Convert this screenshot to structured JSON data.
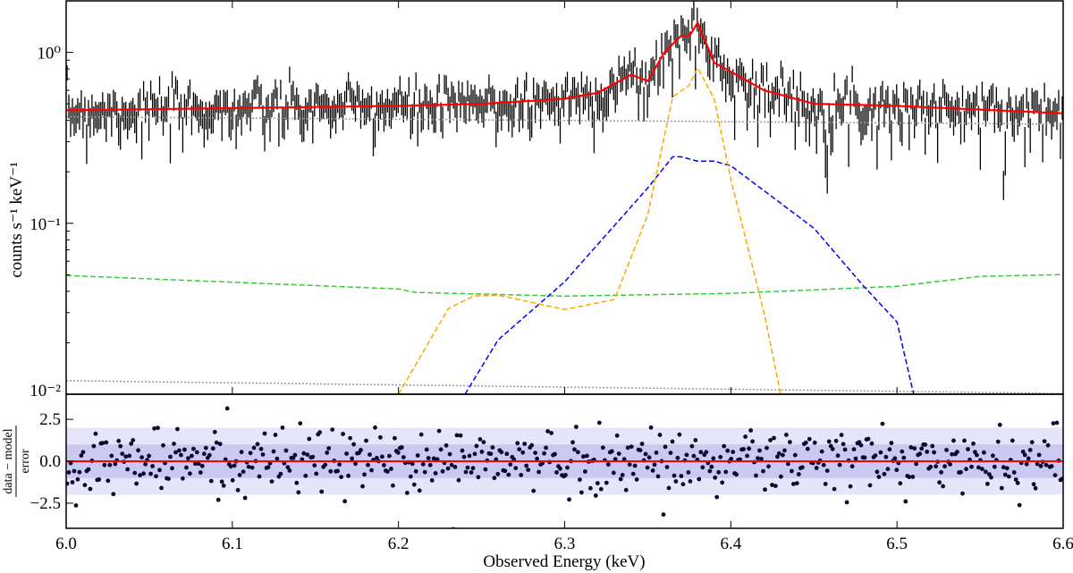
{
  "chart_data": [
    {
      "type": "line",
      "panel": "spectrum",
      "ylabel": "counts s⁻¹ keV⁻¹",
      "yscale": "log",
      "xlim": [
        6.0,
        6.6
      ],
      "ylim": [
        0.01,
        2.0
      ],
      "yticks": [
        {
          "value": 0.01,
          "label": "10⁻²"
        },
        {
          "value": 0.1,
          "label": "10⁻¹"
        },
        {
          "value": 1,
          "label": "10⁰"
        }
      ],
      "grid": false,
      "colors": {
        "data": "#000000",
        "total_model": "#ff0000",
        "line_narrow": "#ffa500",
        "line_broad": "#0000ff",
        "continuum_comp": "#33cc33",
        "background": "#999999"
      },
      "series": [
        {
          "key": "total_model",
          "style": "solid",
          "x": [
            6.0,
            6.2,
            6.25,
            6.28,
            6.3,
            6.32,
            6.34,
            6.35,
            6.36,
            6.37,
            6.375,
            6.38,
            6.39,
            6.4,
            6.42,
            6.45,
            6.5,
            6.6
          ],
          "y": [
            0.458,
            0.486,
            0.5,
            0.52,
            0.535,
            0.58,
            0.74,
            0.68,
            1.0,
            1.25,
            1.24,
            1.49,
            0.87,
            0.77,
            0.6,
            0.5,
            0.486,
            0.44
          ]
        },
        {
          "key": "line_narrow",
          "style": "dashed",
          "x": [
            6.2,
            6.23,
            6.245,
            6.26,
            6.3,
            6.33,
            6.35,
            6.365,
            6.375,
            6.38,
            6.39,
            6.4,
            6.42,
            6.43
          ],
          "y": [
            0.01,
            0.0317,
            0.0375,
            0.038,
            0.0313,
            0.0358,
            0.112,
            0.548,
            0.641,
            0.815,
            0.535,
            0.181,
            0.03,
            0.01
          ]
        },
        {
          "key": "line_broad",
          "style": "dashed",
          "x": [
            6.24,
            6.26,
            6.3,
            6.35,
            6.365,
            6.37,
            6.38,
            6.39,
            6.4,
            6.45,
            6.48,
            6.5,
            6.51
          ],
          "y": [
            0.01,
            0.0208,
            0.0455,
            0.161,
            0.245,
            0.245,
            0.231,
            0.231,
            0.217,
            0.0936,
            0.0428,
            0.0265,
            0.01
          ]
        },
        {
          "key": "continuum_comp",
          "style": "dashed",
          "x": [
            6.0,
            6.2,
            6.21,
            6.3,
            6.4,
            6.5,
            6.55,
            6.6
          ],
          "y": [
            0.0495,
            0.0413,
            0.0394,
            0.0375,
            0.0389,
            0.0428,
            0.0489,
            0.0501
          ]
        },
        {
          "key": "background_high",
          "style": "dotted",
          "x": [
            6.0,
            6.6
          ],
          "y": [
            0.42,
            0.38
          ]
        },
        {
          "key": "background_low",
          "style": "dotted",
          "x": [
            6.0,
            6.6
          ],
          "y": [
            0.012,
            0.0101
          ]
        }
      ]
    },
    {
      "type": "scatter",
      "panel": "residuals",
      "ylabel_num": "data − model",
      "ylabel_den": "error",
      "xlabel": "Observed Energy   (keV)",
      "xlim": [
        6.0,
        6.6
      ],
      "ylim": [
        -4,
        4
      ],
      "xticks": [
        "6.0",
        "6.1",
        "6.2",
        "6.3",
        "6.4",
        "6.5",
        "6.6"
      ],
      "yticks": [
        "−2.5",
        "0.0",
        "2.5"
      ],
      "ytick_values": [
        -2.5,
        0,
        2.5
      ],
      "bands": [
        1,
        2
      ],
      "reference_line": 0,
      "colors": {
        "points": "#0a0a30",
        "reference": "#ff0000",
        "band_inner": "#c9c9f2",
        "band_outer": "#e6e6fb"
      }
    }
  ]
}
